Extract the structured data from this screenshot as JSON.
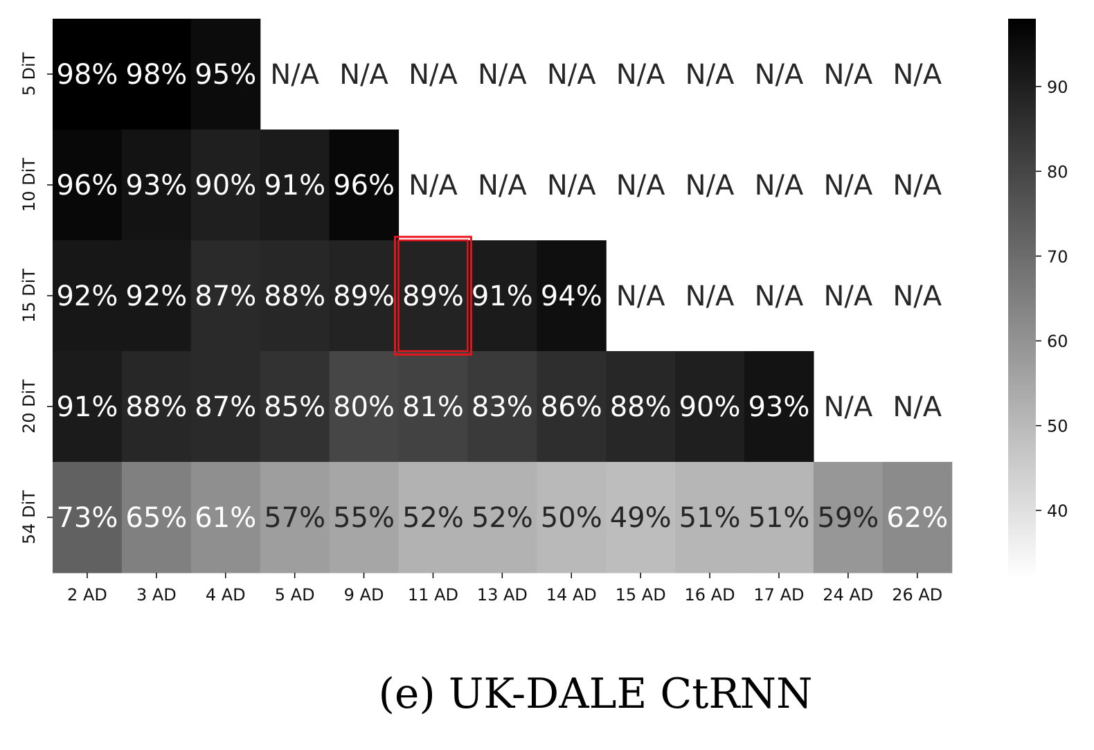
{
  "chart_data": {
    "type": "heatmap",
    "title": "",
    "xlabel": "",
    "ylabel": "",
    "x_categories": [
      "2 AD",
      "3 AD",
      "4 AD",
      "5 AD",
      "9 AD",
      "11 AD",
      "13 AD",
      "14 AD",
      "15 AD",
      "16 AD",
      "17 AD",
      "24 AD",
      "26 AD"
    ],
    "y_categories": [
      "5 DiT",
      "10 DiT",
      "15 DiT",
      "20 DiT",
      "54 DiT"
    ],
    "values": [
      [
        98,
        98,
        95,
        null,
        null,
        null,
        null,
        null,
        null,
        null,
        null,
        null,
        null
      ],
      [
        96,
        93,
        90,
        91,
        96,
        null,
        null,
        null,
        null,
        null,
        null,
        null,
        null
      ],
      [
        92,
        92,
        87,
        88,
        89,
        89,
        91,
        94,
        null,
        null,
        null,
        null,
        null
      ],
      [
        91,
        88,
        87,
        85,
        80,
        81,
        83,
        86,
        88,
        90,
        93,
        null,
        null
      ],
      [
        73,
        65,
        61,
        57,
        55,
        52,
        52,
        50,
        49,
        51,
        51,
        59,
        62
      ]
    ],
    "value_suffix": "%",
    "missing_label": "N/A",
    "colormap": "Greys",
    "colorbar": {
      "min": 32,
      "max": 98,
      "ticks": [
        40,
        50,
        60,
        70,
        80,
        90
      ]
    },
    "highlight": {
      "row": 2,
      "col": 5,
      "color": "#e8141b"
    },
    "caption": "(e) UK-DALE CtRNN"
  }
}
